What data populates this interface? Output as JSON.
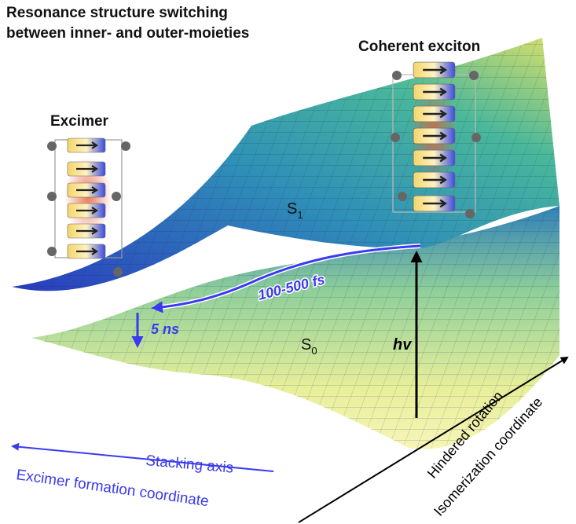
{
  "title": {
    "lines": [
      "Resonance structure switching",
      "between inner- and outer-moieties"
    ]
  },
  "states": {
    "coherent": "Coherent exciton",
    "excimer": "Excimer"
  },
  "surfaces": {
    "upper": {
      "main": "S",
      "sub": "1"
    },
    "lower": {
      "main": "S",
      "sub": "0"
    }
  },
  "processes": {
    "relaxation": "100-500 fs",
    "decay": "5 ns",
    "excitation": "hv"
  },
  "axes": {
    "stacking": {
      "primary": "Stacking axis",
      "secondary": "Excimer formation coordinate"
    },
    "rotation": {
      "primary": "Hindered rotation",
      "secondary": "Isomerization coordinate"
    }
  }
}
